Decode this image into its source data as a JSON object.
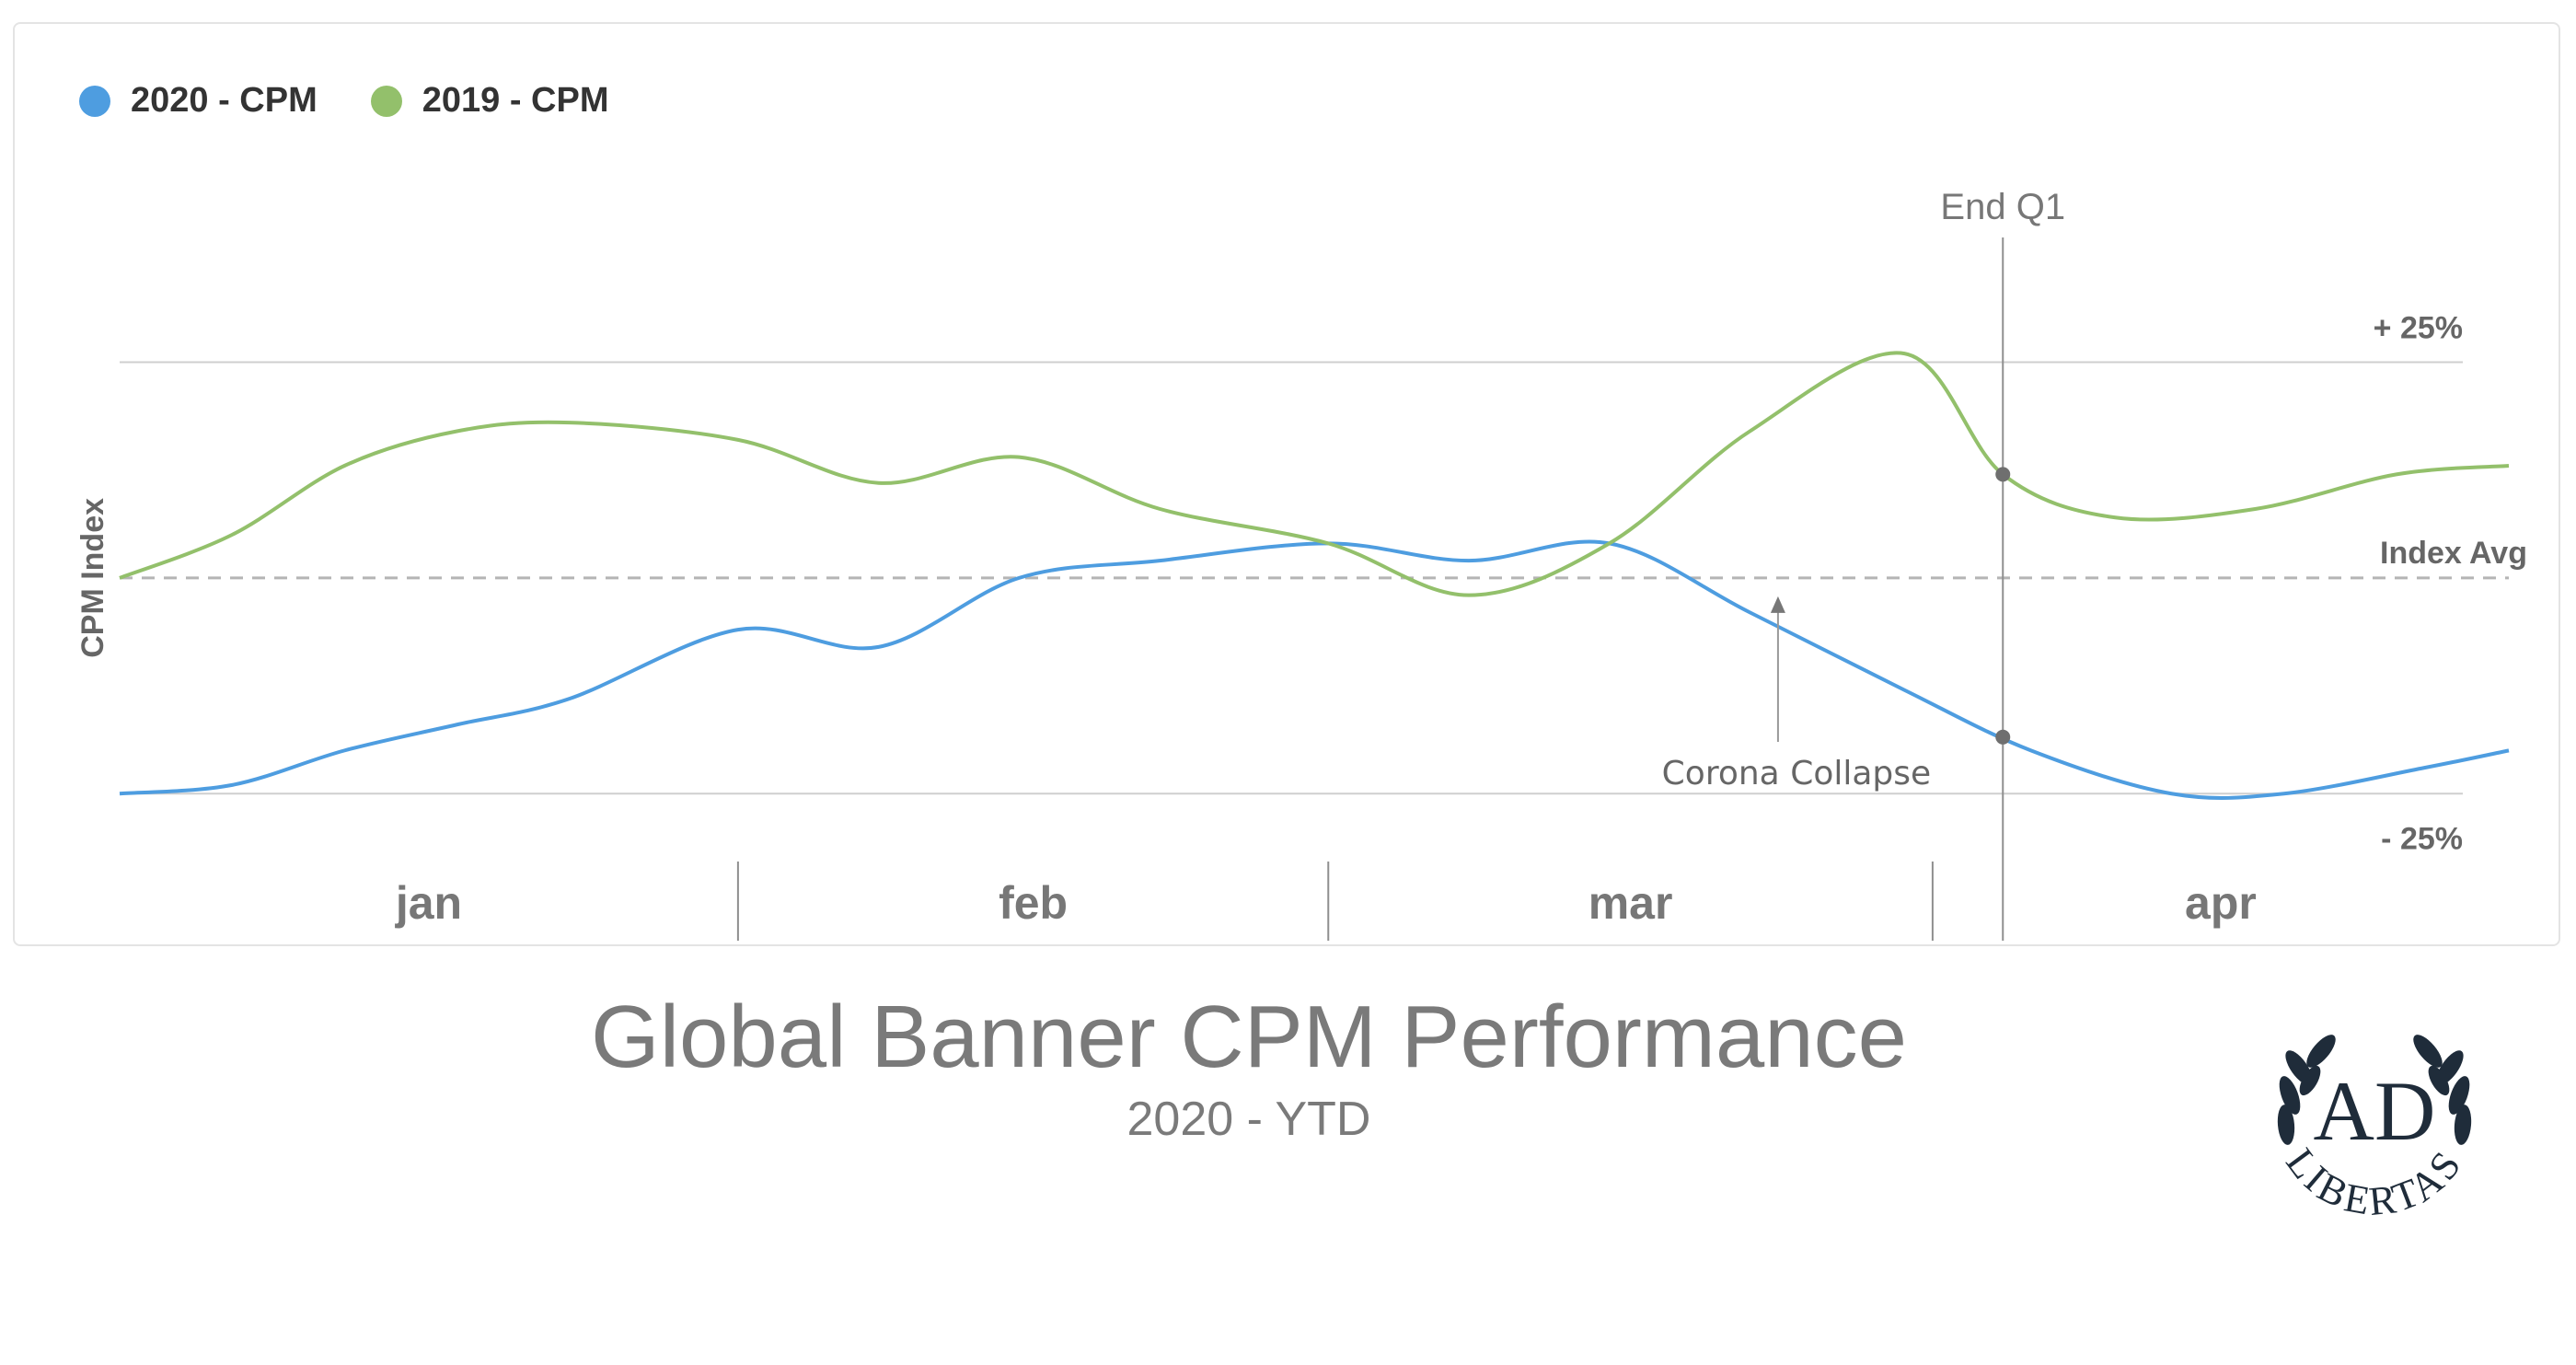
{
  "legend": [
    {
      "name": "2020 - CPM",
      "color": "#4e9de0"
    },
    {
      "name": "2019 - CPM",
      "color": "#93c06b"
    }
  ],
  "title": "Global Banner CPM Performance",
  "subtitle": "2020 - YTD",
  "brand": {
    "top": "AD",
    "bottom": "LIBERTAS"
  },
  "chart_data": {
    "type": "line",
    "ylabel": "CPM Index",
    "y_reference_lines": [
      {
        "value": 25,
        "label": "+ 25%",
        "style": "solid"
      },
      {
        "value": 0,
        "label": "Index Avg",
        "style": "dashed"
      },
      {
        "value": -25,
        "label": "- 25%",
        "style": "solid"
      }
    ],
    "ylim": [
      -35,
      45
    ],
    "x_unit": "week",
    "xlim": [
      0,
      17
    ],
    "months": [
      {
        "label": "jan",
        "start": 0,
        "end": 4.4
      },
      {
        "label": "feb",
        "start": 4.4,
        "end": 8.6
      },
      {
        "label": "mar",
        "start": 8.6,
        "end": 12.9
      },
      {
        "label": "apr",
        "start": 12.9,
        "end": 17
      }
    ],
    "series": [
      {
        "name": "2020 - CPM",
        "color": "#4e9de0",
        "points": [
          [
            0,
            -25
          ],
          [
            0.8,
            -24
          ],
          [
            1.6,
            -20
          ],
          [
            2.4,
            -17
          ],
          [
            3.2,
            -14
          ],
          [
            4.4,
            -6
          ],
          [
            5.4,
            -8
          ],
          [
            6.4,
            0
          ],
          [
            7.4,
            2
          ],
          [
            8.6,
            4
          ],
          [
            9.6,
            2
          ],
          [
            10.6,
            4
          ],
          [
            11.6,
            -4
          ],
          [
            12.7,
            -13
          ],
          [
            13.6,
            -20
          ],
          [
            14.6,
            -25
          ],
          [
            15.4,
            -25
          ],
          [
            16.4,
            -22
          ],
          [
            17,
            -20
          ]
        ]
      },
      {
        "name": "2019 - CPM",
        "color": "#93c06b",
        "points": [
          [
            0,
            0
          ],
          [
            0.8,
            5
          ],
          [
            1.6,
            13
          ],
          [
            2.4,
            17
          ],
          [
            3.2,
            18
          ],
          [
            4.4,
            16
          ],
          [
            5.4,
            11
          ],
          [
            6.4,
            14
          ],
          [
            7.4,
            8
          ],
          [
            8.6,
            4
          ],
          [
            9.6,
            -2
          ],
          [
            10.6,
            4
          ],
          [
            11.6,
            17
          ],
          [
            12.7,
            26
          ],
          [
            13.4,
            12
          ],
          [
            14.2,
            7
          ],
          [
            15.2,
            8
          ],
          [
            16.2,
            12
          ],
          [
            17,
            13
          ]
        ]
      }
    ],
    "annotations": [
      {
        "label": "End Q1",
        "x": 13.4,
        "type": "vertical-line"
      },
      {
        "label": "Corona Collapse",
        "x": 11.8,
        "type": "arrow"
      }
    ]
  }
}
